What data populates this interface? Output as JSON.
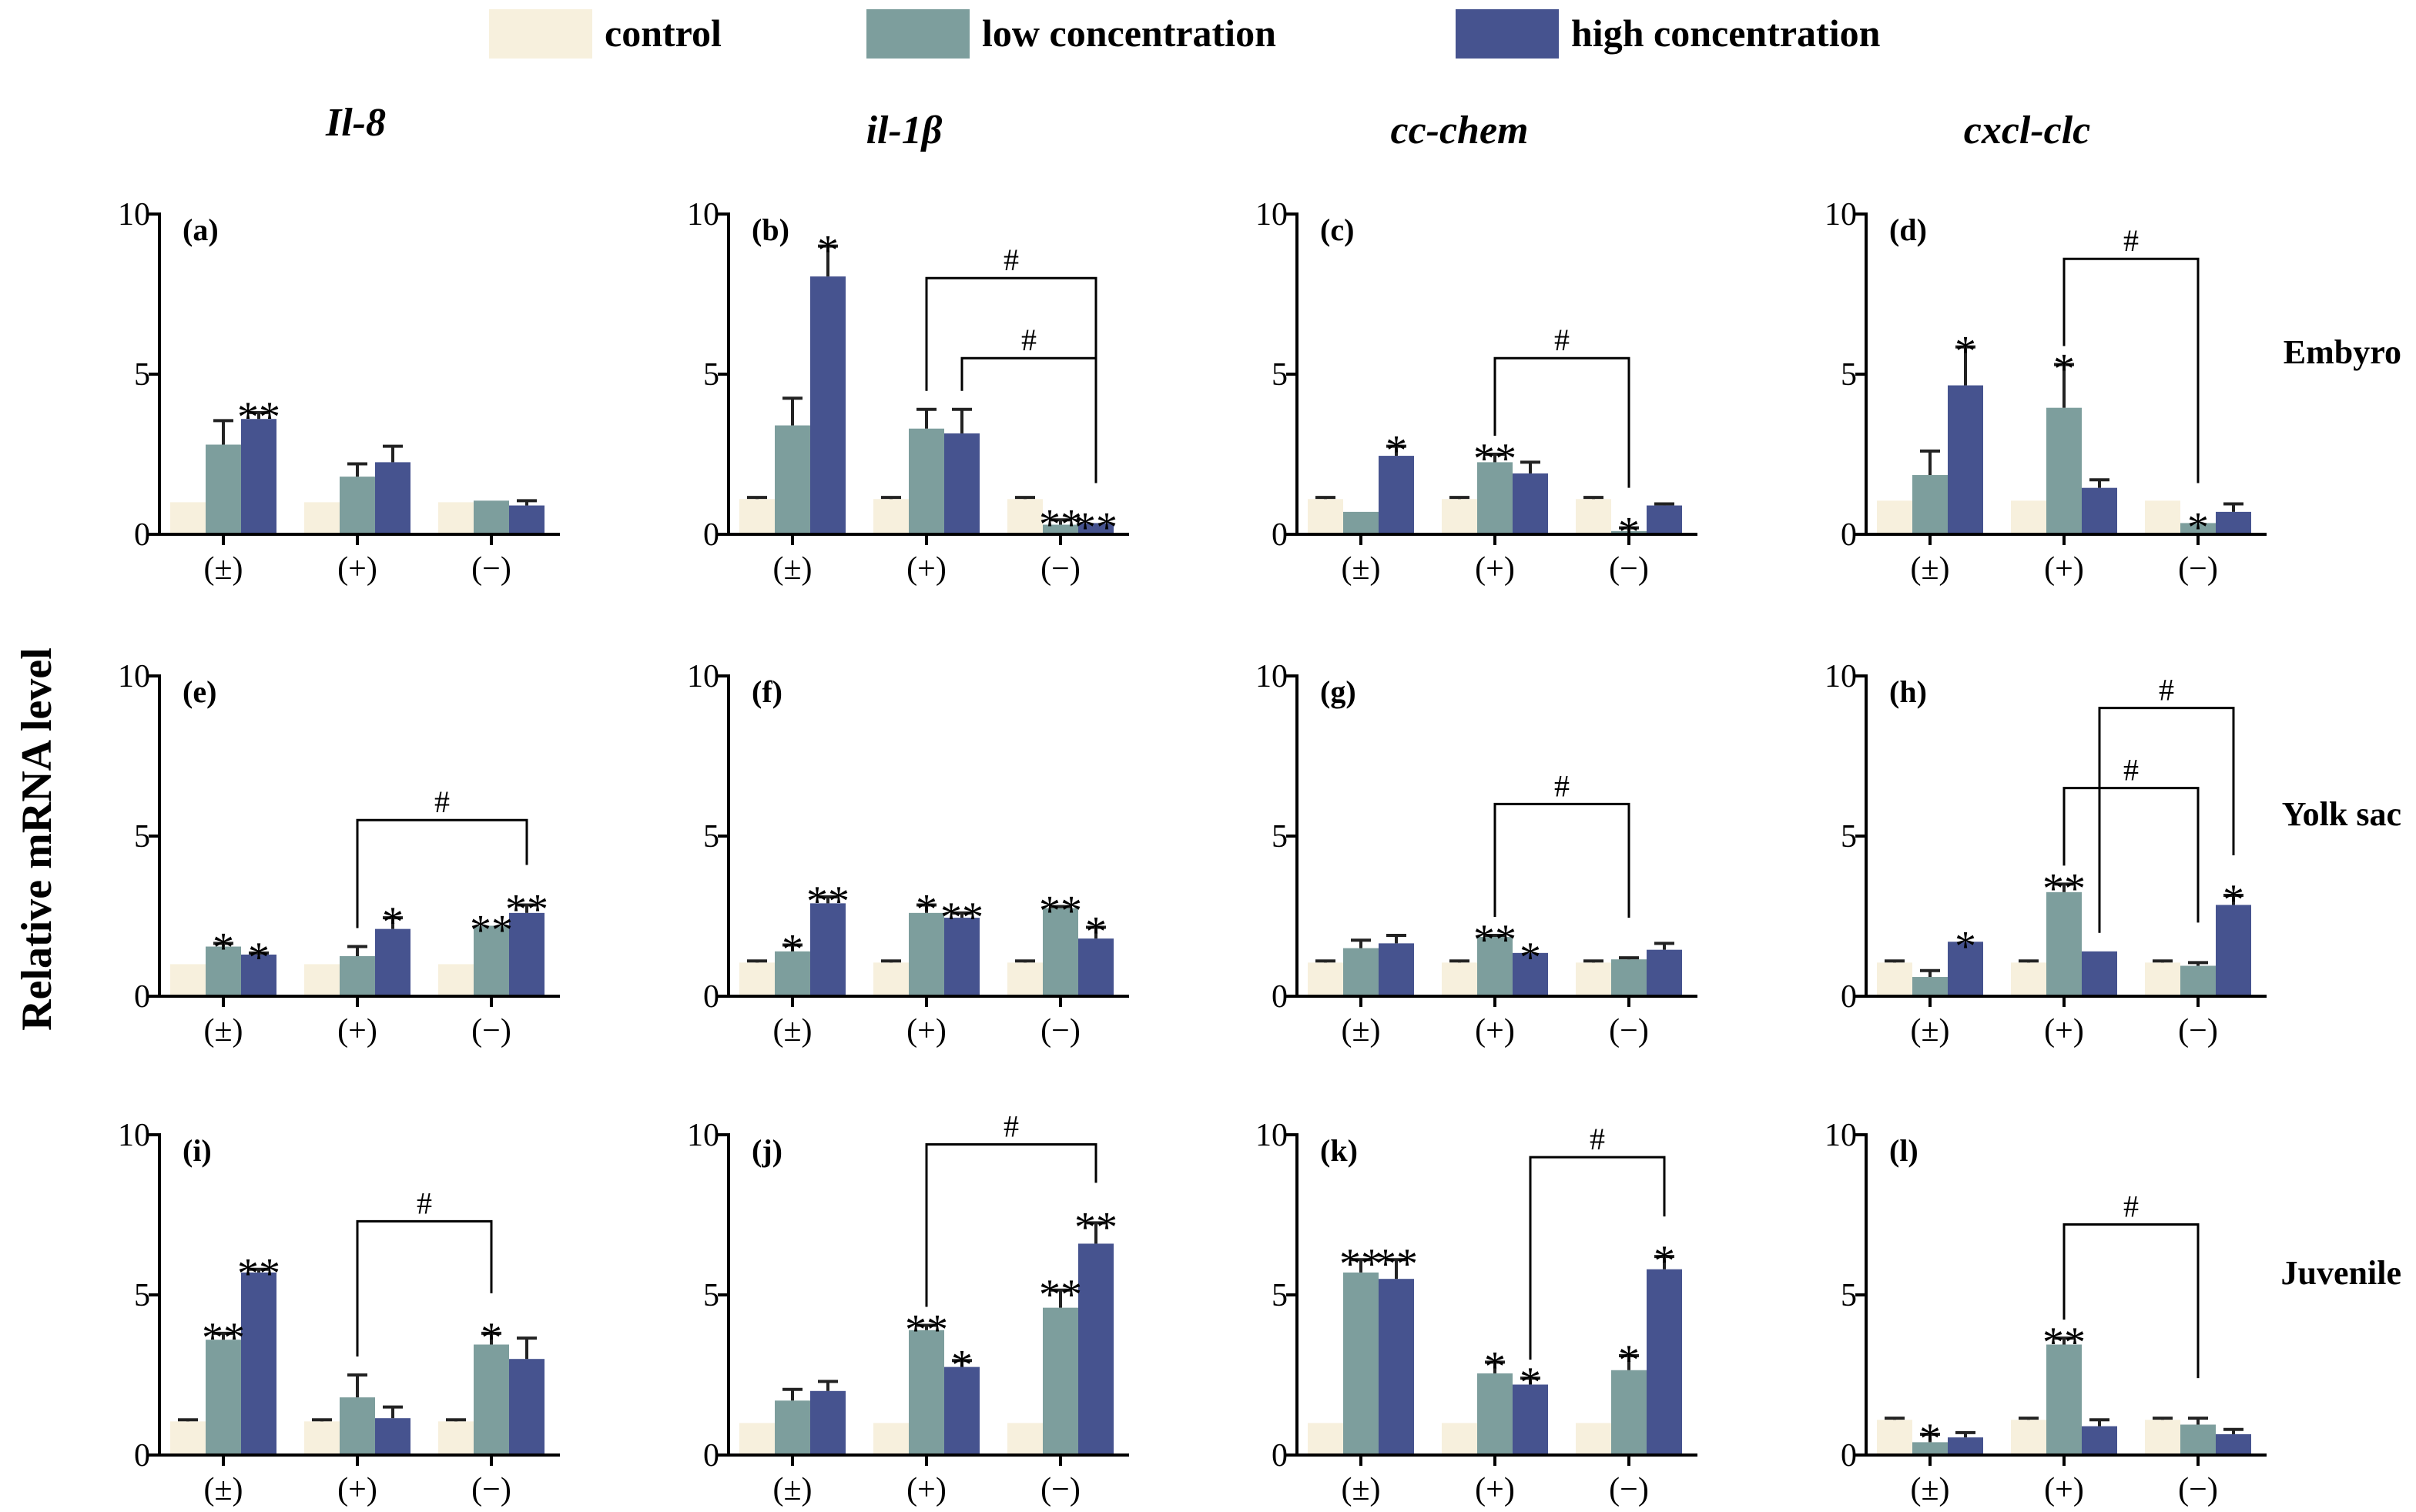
{
  "figure": {
    "ylabel": "Relative mRNA level",
    "legend": [
      {
        "label": "control",
        "color": "#f7f0dd"
      },
      {
        "label": "low concentration",
        "color": "#7d9e9d"
      },
      {
        "label": "high concentration",
        "color": "#46538f"
      }
    ],
    "column_titles": [
      "Il-8",
      "il-1β",
      "cc-chem",
      "cxcl-clc"
    ],
    "row_labels": [
      "Embyro",
      "Yolk sac",
      "Juvenile"
    ],
    "bar_colors": [
      "#f7f0dd",
      "#7d9e9d",
      "#46538f"
    ],
    "error_color": "#222222"
  },
  "chart_data": [
    {
      "type": "bar",
      "panel": "(a)",
      "gene": "Il-8",
      "stage": "Embyro",
      "categories": [
        "(±)",
        "(+)",
        "(−)"
      ],
      "ylim": [
        0,
        10
      ],
      "yticks": [
        0,
        5,
        10
      ],
      "series": [
        {
          "name": "control",
          "values": [
            1.0,
            1.0,
            1.0
          ],
          "errors": [
            0,
            0,
            0
          ]
        },
        {
          "name": "low concentration",
          "values": [
            2.8,
            1.8,
            1.05
          ],
          "errors": [
            0.75,
            0.4,
            0
          ]
        },
        {
          "name": "high concentration",
          "values": [
            3.6,
            2.25,
            0.9
          ],
          "errors": [
            0.2,
            0.5,
            0.15
          ]
        }
      ],
      "marks": [
        {
          "cat": 0,
          "series": 2,
          "text": "**"
        }
      ],
      "brackets": []
    },
    {
      "type": "bar",
      "panel": "(b)",
      "gene": "il-1β",
      "stage": "Embyro",
      "categories": [
        "(±)",
        "(+)",
        "(−)"
      ],
      "ylim": [
        0,
        10
      ],
      "yticks": [
        0,
        5,
        10
      ],
      "series": [
        {
          "name": "control",
          "values": [
            1.1,
            1.1,
            1.1
          ],
          "errors": [
            0.05,
            0.05,
            0.05
          ]
        },
        {
          "name": "low concentration",
          "values": [
            3.4,
            3.3,
            0.3
          ],
          "errors": [
            0.85,
            0.6,
            0.15
          ]
        },
        {
          "name": "high concentration",
          "values": [
            8.05,
            3.15,
            0.35
          ],
          "errors": [
            0.95,
            0.75,
            0
          ]
        }
      ],
      "marks": [
        {
          "cat": 0,
          "series": 2,
          "text": "*"
        },
        {
          "cat": 2,
          "series": 1,
          "text": "**"
        },
        {
          "cat": 2,
          "series": 2,
          "text": "**"
        }
      ],
      "brackets": [
        {
          "from": [
            1,
            1
          ],
          "to": [
            2,
            2
          ],
          "level": 8.0,
          "text": "#"
        },
        {
          "from": [
            1,
            2
          ],
          "to": [
            2,
            2
          ],
          "level": 5.5,
          "text": "#"
        }
      ]
    },
    {
      "type": "bar",
      "panel": "(c)",
      "gene": "cc-chem",
      "stage": "Embyro",
      "categories": [
        "(±)",
        "(+)",
        "(−)"
      ],
      "ylim": [
        0,
        10
      ],
      "yticks": [
        0,
        5,
        10
      ],
      "series": [
        {
          "name": "control",
          "values": [
            1.1,
            1.1,
            1.1
          ],
          "errors": [
            0.05,
            0.05,
            0.05
          ]
        },
        {
          "name": "low concentration",
          "values": [
            0.7,
            2.25,
            0.1
          ],
          "errors": [
            0,
            0.25,
            0.1
          ]
        },
        {
          "name": "high concentration",
          "values": [
            2.45,
            1.9,
            0.9
          ],
          "errors": [
            0.3,
            0.35,
            0.05
          ]
        }
      ],
      "marks": [
        {
          "cat": 0,
          "series": 2,
          "text": "*"
        },
        {
          "cat": 1,
          "series": 1,
          "text": "**"
        },
        {
          "cat": 2,
          "series": 1,
          "text": "*"
        }
      ],
      "brackets": [
        {
          "from": [
            1,
            1
          ],
          "to": [
            2,
            1
          ],
          "level": 5.5,
          "text": "#"
        }
      ]
    },
    {
      "type": "bar",
      "panel": "(d)",
      "gene": "cxcl-clc",
      "stage": "Embyro",
      "categories": [
        "(±)",
        "(+)",
        "(−)"
      ],
      "ylim": [
        0,
        10
      ],
      "yticks": [
        0,
        5,
        10
      ],
      "series": [
        {
          "name": "control",
          "values": [
            1.05,
            1.05,
            1.05
          ],
          "errors": [
            0,
            0,
            0
          ]
        },
        {
          "name": "low concentration",
          "values": [
            1.85,
            3.95,
            0.35
          ],
          "errors": [
            0.75,
            1.35,
            0
          ]
        },
        {
          "name": "high concentration",
          "values": [
            4.65,
            1.45,
            0.7
          ],
          "errors": [
            1.2,
            0.25,
            0.25
          ]
        }
      ],
      "marks": [
        {
          "cat": 0,
          "series": 2,
          "text": "*"
        },
        {
          "cat": 1,
          "series": 1,
          "text": "*"
        },
        {
          "cat": 2,
          "series": 1,
          "text": "*"
        }
      ],
      "brackets": [
        {
          "from": [
            1,
            1
          ],
          "to": [
            2,
            1
          ],
          "level": 8.6,
          "text": "#"
        }
      ]
    },
    {
      "type": "bar",
      "panel": "(e)",
      "gene": "Il-8",
      "stage": "Yolk sac",
      "categories": [
        "(±)",
        "(+)",
        "(−)"
      ],
      "ylim": [
        0,
        10
      ],
      "yticks": [
        0,
        5,
        10
      ],
      "series": [
        {
          "name": "control",
          "values": [
            1.0,
            1.0,
            1.0
          ],
          "errors": [
            0,
            0,
            0
          ]
        },
        {
          "name": "low concentration",
          "values": [
            1.55,
            1.25,
            2.2
          ],
          "errors": [
            0.1,
            0.3,
            0
          ]
        },
        {
          "name": "high concentration",
          "values": [
            1.3,
            2.1,
            2.6
          ],
          "errors": [
            0.05,
            0.35,
            0.25
          ]
        }
      ],
      "marks": [
        {
          "cat": 0,
          "series": 1,
          "text": "*"
        },
        {
          "cat": 0,
          "series": 2,
          "text": "*"
        },
        {
          "cat": 1,
          "series": 2,
          "text": "*"
        },
        {
          "cat": 2,
          "series": 1,
          "text": "**"
        },
        {
          "cat": 2,
          "series": 2,
          "text": "**"
        }
      ],
      "brackets": [
        {
          "from": [
            1,
            1
          ],
          "to": [
            2,
            2
          ],
          "level": 5.5,
          "text": "#"
        }
      ]
    },
    {
      "type": "bar",
      "panel": "(f)",
      "gene": "il-1β",
      "stage": "Yolk sac",
      "categories": [
        "(±)",
        "(+)",
        "(−)"
      ],
      "ylim": [
        0,
        10
      ],
      "yticks": [
        0,
        5,
        10
      ],
      "series": [
        {
          "name": "control",
          "values": [
            1.05,
            1.05,
            1.05
          ],
          "errors": [
            0.05,
            0.05,
            0.05
          ]
        },
        {
          "name": "low concentration",
          "values": [
            1.4,
            2.6,
            2.75
          ],
          "errors": [
            0.2,
            0.25,
            0.05
          ]
        },
        {
          "name": "high concentration",
          "values": [
            2.9,
            2.45,
            1.8
          ],
          "errors": [
            0.2,
            0.15,
            0.35
          ]
        }
      ],
      "marks": [
        {
          "cat": 0,
          "series": 1,
          "text": "*"
        },
        {
          "cat": 0,
          "series": 2,
          "text": "**"
        },
        {
          "cat": 1,
          "series": 1,
          "text": "*"
        },
        {
          "cat": 1,
          "series": 2,
          "text": "**"
        },
        {
          "cat": 2,
          "series": 1,
          "text": "**"
        },
        {
          "cat": 2,
          "series": 2,
          "text": "*"
        }
      ],
      "brackets": []
    },
    {
      "type": "bar",
      "panel": "(g)",
      "gene": "cc-chem",
      "stage": "Yolk sac",
      "categories": [
        "(±)",
        "(+)",
        "(−)"
      ],
      "ylim": [
        0,
        10
      ],
      "yticks": [
        0,
        5,
        10
      ],
      "series": [
        {
          "name": "control",
          "values": [
            1.05,
            1.05,
            1.05
          ],
          "errors": [
            0.05,
            0.05,
            0.05
          ]
        },
        {
          "name": "low concentration",
          "values": [
            1.5,
            1.85,
            1.15
          ],
          "errors": [
            0.25,
            0.05,
            0.05
          ]
        },
        {
          "name": "high concentration",
          "values": [
            1.65,
            1.35,
            1.45
          ],
          "errors": [
            0.25,
            0,
            0.2
          ]
        }
      ],
      "marks": [
        {
          "cat": 1,
          "series": 1,
          "text": "**"
        },
        {
          "cat": 1,
          "series": 2,
          "text": "*"
        }
      ],
      "brackets": [
        {
          "from": [
            1,
            1
          ],
          "to": [
            2,
            1
          ],
          "level": 6.0,
          "text": "#"
        }
      ]
    },
    {
      "type": "bar",
      "panel": "(h)",
      "gene": "cxcl-clc",
      "stage": "Yolk sac",
      "categories": [
        "(±)",
        "(+)",
        "(−)"
      ],
      "ylim": [
        0,
        10
      ],
      "yticks": [
        0,
        5,
        10
      ],
      "series": [
        {
          "name": "control",
          "values": [
            1.05,
            1.05,
            1.05
          ],
          "errors": [
            0.05,
            0.05,
            0.05
          ]
        },
        {
          "name": "low concentration",
          "values": [
            0.6,
            3.25,
            0.95
          ],
          "errors": [
            0.2,
            0.25,
            0.1
          ]
        },
        {
          "name": "high concentration",
          "values": [
            1.7,
            1.4,
            2.85
          ],
          "errors": [
            0,
            0,
            0.3
          ]
        }
      ],
      "marks": [
        {
          "cat": 0,
          "series": 2,
          "text": "*"
        },
        {
          "cat": 1,
          "series": 1,
          "text": "**"
        },
        {
          "cat": 2,
          "series": 2,
          "text": "*"
        }
      ],
      "brackets": [
        {
          "from": [
            1,
            2
          ],
          "to": [
            2,
            2
          ],
          "level": 9.0,
          "text": "#"
        },
        {
          "from": [
            1,
            1
          ],
          "to": [
            2,
            1
          ],
          "level": 6.5,
          "text": "#"
        }
      ]
    },
    {
      "type": "bar",
      "panel": "(i)",
      "gene": "Il-8",
      "stage": "Juvenile",
      "categories": [
        "(±)",
        "(+)",
        "(−)"
      ],
      "ylim": [
        0,
        10
      ],
      "yticks": [
        0,
        5,
        10
      ],
      "series": [
        {
          "name": "control",
          "values": [
            1.05,
            1.05,
            1.05
          ],
          "errors": [
            0.05,
            0.05,
            0.05
          ]
        },
        {
          "name": "low concentration",
          "values": [
            3.6,
            1.8,
            3.45
          ],
          "errors": [
            0.2,
            0.7,
            0.35
          ]
        },
        {
          "name": "high concentration",
          "values": [
            5.7,
            1.15,
            3.0
          ],
          "errors": [
            0.1,
            0.35,
            0.65
          ]
        }
      ],
      "marks": [
        {
          "cat": 0,
          "series": 1,
          "text": "**"
        },
        {
          "cat": 0,
          "series": 2,
          "text": "**"
        },
        {
          "cat": 2,
          "series": 1,
          "text": "*"
        }
      ],
      "brackets": [
        {
          "from": [
            1,
            1
          ],
          "to": [
            2,
            1
          ],
          "level": 7.3,
          "text": "#"
        }
      ]
    },
    {
      "type": "bar",
      "panel": "(j)",
      "gene": "il-1β",
      "stage": "Juvenile",
      "categories": [
        "(±)",
        "(+)",
        "(−)"
      ],
      "ylim": [
        0,
        10
      ],
      "yticks": [
        0,
        5,
        10
      ],
      "series": [
        {
          "name": "control",
          "values": [
            1.0,
            1.0,
            1.0
          ],
          "errors": [
            0,
            0,
            0
          ]
        },
        {
          "name": "low concentration",
          "values": [
            1.7,
            3.9,
            4.6
          ],
          "errors": [
            0.35,
            0.15,
            0.55
          ]
        },
        {
          "name": "high concentration",
          "values": [
            2.0,
            2.75,
            6.6
          ],
          "errors": [
            0.3,
            0.2,
            0.65
          ]
        }
      ],
      "marks": [
        {
          "cat": 1,
          "series": 1,
          "text": "**"
        },
        {
          "cat": 1,
          "series": 2,
          "text": "*"
        },
        {
          "cat": 2,
          "series": 1,
          "text": "**"
        },
        {
          "cat": 2,
          "series": 2,
          "text": "**"
        }
      ],
      "brackets": [
        {
          "from": [
            1,
            1
          ],
          "to": [
            2,
            2
          ],
          "level": 9.7,
          "text": "#"
        }
      ]
    },
    {
      "type": "bar",
      "panel": "(k)",
      "gene": "cc-chem",
      "stage": "Juvenile",
      "categories": [
        "(±)",
        "(+)",
        "(−)"
      ],
      "ylim": [
        0,
        10
      ],
      "yticks": [
        0,
        5,
        10
      ],
      "series": [
        {
          "name": "control",
          "values": [
            1.0,
            1.0,
            1.0
          ],
          "errors": [
            0,
            0,
            0
          ]
        },
        {
          "name": "low concentration",
          "values": [
            5.7,
            2.55,
            2.65
          ],
          "errors": [
            0.4,
            0.35,
            0.45
          ]
        },
        {
          "name": "high concentration",
          "values": [
            5.5,
            2.2,
            5.8
          ],
          "errors": [
            0.6,
            0.2,
            0.4
          ]
        }
      ],
      "marks": [
        {
          "cat": 0,
          "series": 1,
          "text": "**"
        },
        {
          "cat": 0,
          "series": 2,
          "text": "**"
        },
        {
          "cat": 1,
          "series": 1,
          "text": "*"
        },
        {
          "cat": 1,
          "series": 2,
          "text": "*"
        },
        {
          "cat": 2,
          "series": 1,
          "text": "*"
        },
        {
          "cat": 2,
          "series": 2,
          "text": "*"
        }
      ],
      "brackets": [
        {
          "from": [
            1,
            2
          ],
          "to": [
            2,
            2
          ],
          "level": 9.3,
          "text": "#"
        }
      ]
    },
    {
      "type": "bar",
      "panel": "(l)",
      "gene": "cxcl-clc",
      "stage": "Juvenile",
      "categories": [
        "(±)",
        "(+)",
        "(−)"
      ],
      "ylim": [
        0,
        10
      ],
      "yticks": [
        0,
        5,
        10
      ],
      "series": [
        {
          "name": "control",
          "values": [
            1.1,
            1.1,
            1.1
          ],
          "errors": [
            0.05,
            0.05,
            0.05
          ]
        },
        {
          "name": "low concentration",
          "values": [
            0.4,
            3.45,
            0.95
          ],
          "errors": [
            0.25,
            0.2,
            0.2
          ]
        },
        {
          "name": "high concentration",
          "values": [
            0.55,
            0.9,
            0.65
          ],
          "errors": [
            0.15,
            0.2,
            0.15
          ]
        }
      ],
      "marks": [
        {
          "cat": 0,
          "series": 1,
          "text": "*"
        },
        {
          "cat": 1,
          "series": 1,
          "text": "**"
        }
      ],
      "brackets": [
        {
          "from": [
            1,
            1
          ],
          "to": [
            2,
            1
          ],
          "level": 7.2,
          "text": "#"
        }
      ]
    }
  ]
}
